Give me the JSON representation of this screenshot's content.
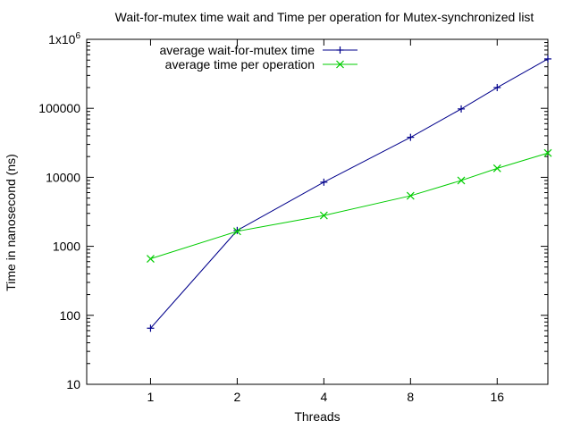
{
  "chart_data": {
    "type": "line",
    "title": "Wait-for-mutex time wait and Time per operation for Mutex-synchronized list",
    "xlabel": "Threads",
    "ylabel": "Time in nanosecond (ns)",
    "x_scale": "log2",
    "y_scale": "log10",
    "xlim": [
      0.6,
      24
    ],
    "ylim": [
      10,
      1000000
    ],
    "x_ticks": [
      {
        "value": 1,
        "label": "1"
      },
      {
        "value": 2,
        "label": "2"
      },
      {
        "value": 4,
        "label": "4"
      },
      {
        "value": 8,
        "label": "8"
      },
      {
        "value": 16,
        "label": "16"
      }
    ],
    "y_ticks": [
      {
        "value": 10,
        "label": "10"
      },
      {
        "value": 100,
        "label": "100"
      },
      {
        "value": 1000,
        "label": "1000"
      },
      {
        "value": 10000,
        "label": "10000"
      },
      {
        "value": 100000,
        "label": "100000"
      },
      {
        "value": 1000000,
        "label": "1x10",
        "sup": "6"
      }
    ],
    "grid": false,
    "legend_position": "top-left",
    "series": [
      {
        "name": "average wait-for-mutex time",
        "color": "#00008b",
        "marker": "plus",
        "x": [
          1,
          2,
          4,
          8,
          12,
          16,
          24
        ],
        "y": [
          65,
          1700,
          8500,
          38000,
          98000,
          200000,
          520000
        ]
      },
      {
        "name": "average time per operation",
        "color": "#00cc00",
        "marker": "cross",
        "x": [
          1,
          2,
          4,
          8,
          12,
          16,
          24
        ],
        "y": [
          660,
          1650,
          2800,
          5400,
          9000,
          13500,
          22500
        ]
      }
    ]
  }
}
